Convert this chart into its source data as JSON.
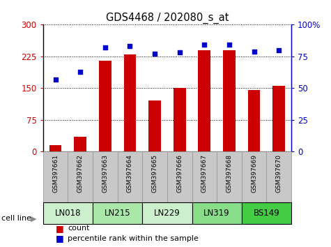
{
  "title": "GDS4468 / 202080_s_at",
  "samples": [
    "GSM397661",
    "GSM397662",
    "GSM397663",
    "GSM397664",
    "GSM397665",
    "GSM397666",
    "GSM397667",
    "GSM397668",
    "GSM397669",
    "GSM397670"
  ],
  "counts": [
    15,
    35,
    215,
    230,
    120,
    150,
    240,
    240,
    145,
    155
  ],
  "percentile_ranks": [
    57,
    63,
    82,
    83,
    77,
    78,
    84,
    84,
    79,
    80
  ],
  "cell_lines": [
    {
      "name": "LN018",
      "span": [
        0,
        2
      ],
      "color": "#ccf0cc"
    },
    {
      "name": "LN215",
      "span": [
        2,
        4
      ],
      "color": "#aae8aa"
    },
    {
      "name": "LN229",
      "span": [
        4,
        6
      ],
      "color": "#ccf0cc"
    },
    {
      "name": "LN319",
      "span": [
        6,
        8
      ],
      "color": "#88dd88"
    },
    {
      "name": "BS149",
      "span": [
        8,
        10
      ],
      "color": "#44cc44"
    }
  ],
  "ylim_left": [
    0,
    300
  ],
  "ylim_right": [
    0,
    100
  ],
  "yticks_left": [
    0,
    75,
    150,
    225,
    300
  ],
  "yticks_right": [
    0,
    25,
    50,
    75,
    100
  ],
  "ytick_labels_left": [
    "0",
    "75",
    "150",
    "225",
    "300"
  ],
  "ytick_labels_right": [
    "0",
    "25",
    "50",
    "75",
    "100%"
  ],
  "bar_color": "#cc0000",
  "dot_color": "#0000cc",
  "bar_width": 0.5,
  "sample_bg_color": "#c8c8c8",
  "sample_border_color": "#999999",
  "cell_line_border": "#000000"
}
